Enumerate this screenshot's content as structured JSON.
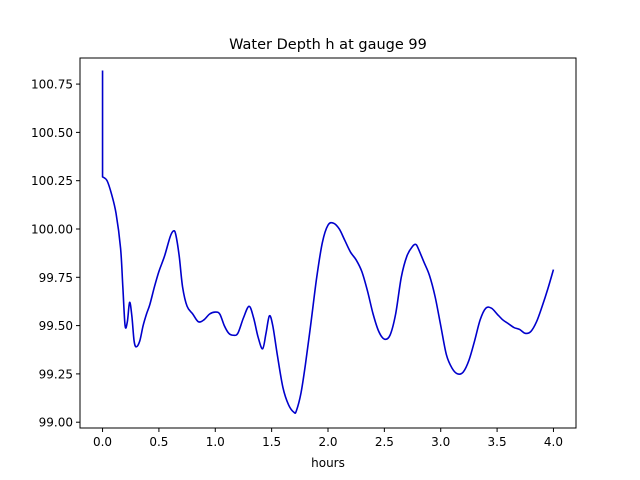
{
  "chart_data": {
    "type": "line",
    "title": "Water Depth h at gauge 99",
    "xlabel": "hours",
    "ylabel": "",
    "xlim": [
      -0.2,
      4.2
    ],
    "ylim": [
      98.97,
      100.885
    ],
    "xticks": [
      0.0,
      0.5,
      1.0,
      1.5,
      2.0,
      2.5,
      3.0,
      3.5,
      4.0
    ],
    "xtick_labels": [
      "0.0",
      "0.5",
      "1.0",
      "1.5",
      "2.0",
      "2.5",
      "3.0",
      "3.5",
      "4.0"
    ],
    "yticks": [
      99.0,
      99.25,
      99.5,
      99.75,
      100.0,
      100.25,
      100.5,
      100.75
    ],
    "ytick_labels": [
      "99.00",
      "99.25",
      "99.50",
      "99.75",
      "100.00",
      "100.25",
      "100.50",
      "100.75"
    ],
    "grid": false,
    "series": [
      {
        "color": "#0000cc",
        "x": [
          0.0,
          0.0,
          0.0,
          0.04,
          0.08,
          0.12,
          0.16,
          0.18,
          0.2,
          0.22,
          0.24,
          0.26,
          0.28,
          0.3,
          0.33,
          0.36,
          0.39,
          0.42,
          0.46,
          0.5,
          0.55,
          0.6,
          0.63,
          0.65,
          0.68,
          0.71,
          0.75,
          0.8,
          0.85,
          0.9,
          0.95,
          1.0,
          1.04,
          1.08,
          1.12,
          1.16,
          1.2,
          1.25,
          1.3,
          1.34,
          1.38,
          1.42,
          1.45,
          1.48,
          1.51,
          1.55,
          1.6,
          1.65,
          1.7,
          1.72,
          1.76,
          1.8,
          1.85,
          1.9,
          1.95,
          2.0,
          2.05,
          2.1,
          2.15,
          2.2,
          2.25,
          2.3,
          2.35,
          2.4,
          2.45,
          2.5,
          2.55,
          2.6,
          2.65,
          2.7,
          2.75,
          2.78,
          2.8,
          2.85,
          2.9,
          2.95,
          3.0,
          3.05,
          3.1,
          3.15,
          3.2,
          3.25,
          3.3,
          3.35,
          3.4,
          3.45,
          3.5,
          3.55,
          3.6,
          3.65,
          3.7,
          3.75,
          3.8,
          3.85,
          3.9,
          3.95,
          4.0
        ],
        "y": [
          100.82,
          100.82,
          100.27,
          100.25,
          100.18,
          100.08,
          99.9,
          99.7,
          99.5,
          99.52,
          99.62,
          99.55,
          99.42,
          99.39,
          99.42,
          99.5,
          99.56,
          99.61,
          99.7,
          99.78,
          99.86,
          99.96,
          99.99,
          99.97,
          99.86,
          99.7,
          99.6,
          99.56,
          99.52,
          99.53,
          99.56,
          99.57,
          99.56,
          99.5,
          99.46,
          99.45,
          99.46,
          99.54,
          99.6,
          99.54,
          99.44,
          99.38,
          99.46,
          99.55,
          99.5,
          99.35,
          99.18,
          99.09,
          99.05,
          99.06,
          99.15,
          99.3,
          99.52,
          99.75,
          99.93,
          100.02,
          100.03,
          100.0,
          99.94,
          99.88,
          99.84,
          99.78,
          99.68,
          99.56,
          99.47,
          99.43,
          99.45,
          99.56,
          99.75,
          99.86,
          99.91,
          99.92,
          99.9,
          99.83,
          99.76,
          99.65,
          99.5,
          99.35,
          99.28,
          99.25,
          99.26,
          99.32,
          99.42,
          99.53,
          99.59,
          99.59,
          99.56,
          99.53,
          99.51,
          99.49,
          99.48,
          99.46,
          99.47,
          99.52,
          99.6,
          99.69,
          99.79
        ]
      }
    ]
  }
}
